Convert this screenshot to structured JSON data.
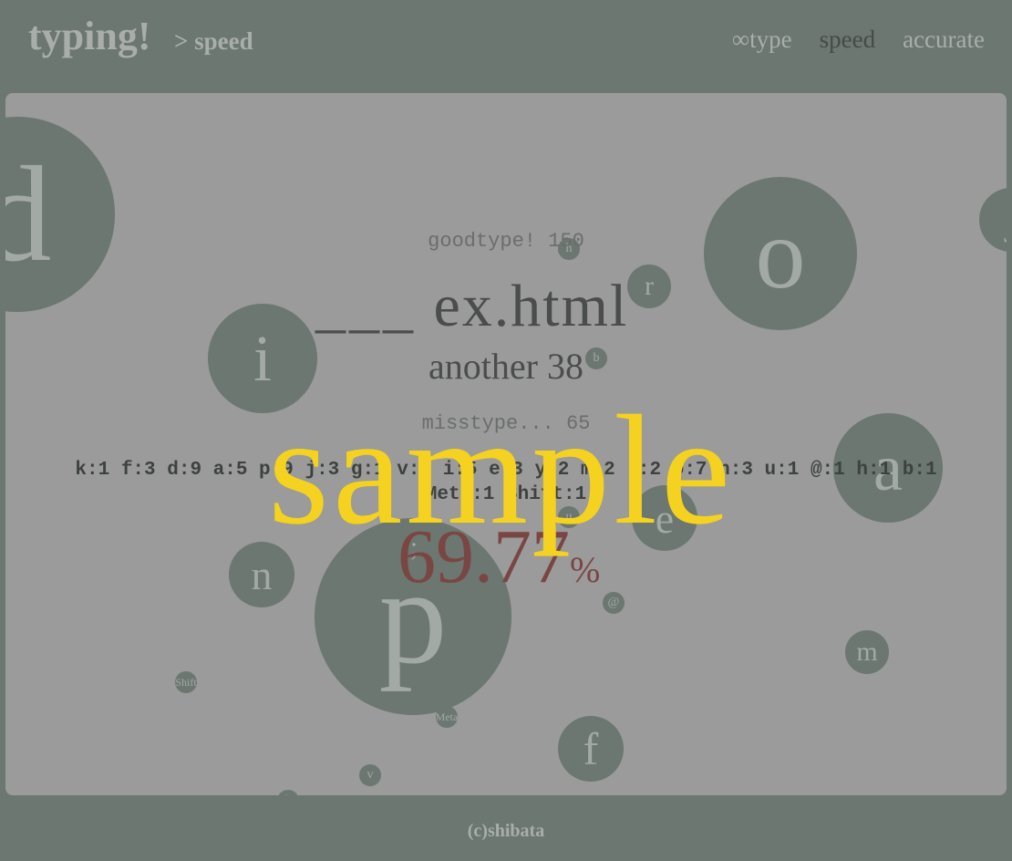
{
  "header": {
    "logo": "typing!",
    "crumb": "> speed",
    "nav": [
      "∞type",
      "speed",
      "accurate"
    ],
    "active_nav": "speed"
  },
  "game": {
    "goodtype": "goodtype! 150",
    "word_typed": "___",
    "word_rest": "ex.html",
    "another": "another 38",
    "misstype": "misstype... 65",
    "key_misses": "k:1 f:3 d:9 a:5 p:9 j:3 g:1 v:1 i:5 e:3 y:2 m:2 ;:2 o:7 n:3 u:1 @:1 h:1 b:1",
    "key_misses_2": "Meta:1 Shift:1",
    "accuracy": "69.77",
    "accuracy_unit": "%"
  },
  "bubbles": [
    {
      "label": "d"
    },
    {
      "label": "o"
    },
    {
      "label": "i"
    },
    {
      "label": "a"
    },
    {
      "label": "p"
    },
    {
      "label": "n"
    },
    {
      "label": "e"
    },
    {
      "label": "f"
    },
    {
      "label": "m"
    },
    {
      "label": "r"
    },
    {
      "label": "h"
    },
    {
      "label": "b"
    },
    {
      "label": "u"
    },
    {
      "label": ";"
    },
    {
      "label": "@"
    },
    {
      "label": "Shift"
    },
    {
      "label": "Meta"
    },
    {
      "label": "v"
    },
    {
      "label": "j"
    },
    {
      "label": "k"
    }
  ],
  "watermark": "sample",
  "footer": "(c)shibata",
  "colors": {
    "background": "#6b7770",
    "panel": "#9a9b9a",
    "bubble": "#6b7770",
    "accuracy": "#7a4644",
    "watermark": "#f5d21f"
  }
}
